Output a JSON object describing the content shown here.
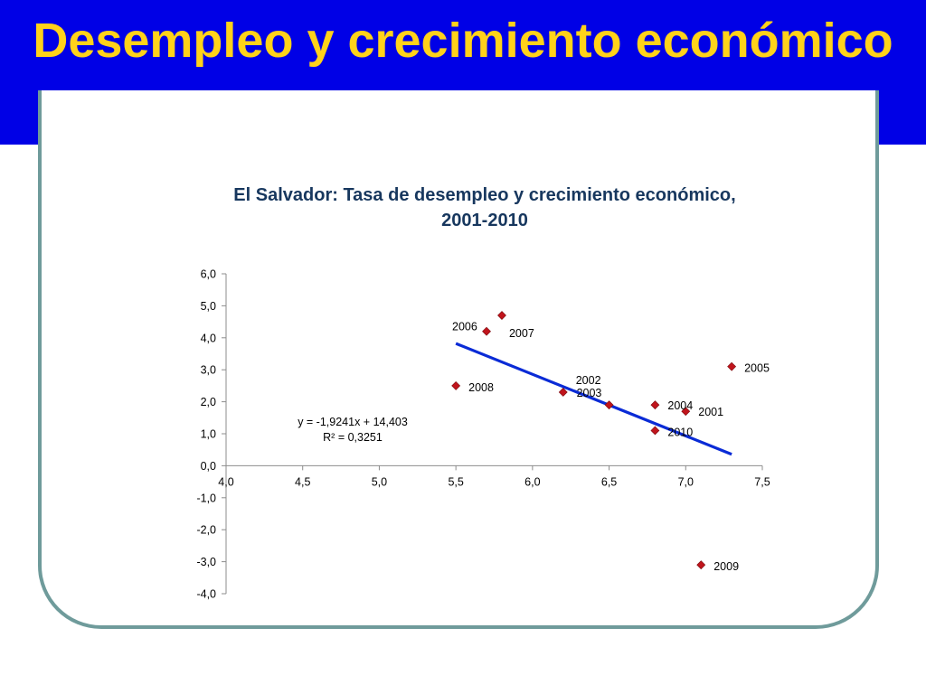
{
  "slide": {
    "title": "Desempleo y crecimiento económico"
  },
  "chart_data": {
    "type": "scatter",
    "title": "El Salvador: Tasa de desempleo y crecimiento económico, 2001-2010",
    "xlabel": "",
    "ylabel": "",
    "xlim": [
      4.0,
      7.5
    ],
    "ylim": [
      -4.0,
      6.0
    ],
    "x_ticks": [
      "4,0",
      "4,5",
      "5,0",
      "5,5",
      "6,0",
      "6,5",
      "7,0",
      "7,5"
    ],
    "y_ticks": [
      "6,0",
      "5,0",
      "4,0",
      "3,0",
      "2,0",
      "1,0",
      "0,0",
      "-1,0",
      "-2,0",
      "-3,0",
      "-4,0"
    ],
    "grid": false,
    "legend": "none",
    "marker_color": "#c0141c",
    "trendline_color": "#0a2bd6",
    "points": [
      {
        "label": "2001",
        "x": 7.0,
        "y": 1.7
      },
      {
        "label": "2002",
        "x": 6.2,
        "y": 2.3
      },
      {
        "label": "2003",
        "x": 6.5,
        "y": 1.9
      },
      {
        "label": "2004",
        "x": 6.8,
        "y": 1.9
      },
      {
        "label": "2005",
        "x": 7.3,
        "y": 3.1
      },
      {
        "label": "2006",
        "x": 5.7,
        "y": 4.2
      },
      {
        "label": "2007",
        "x": 5.8,
        "y": 4.7
      },
      {
        "label": "2008",
        "x": 5.5,
        "y": 2.5
      },
      {
        "label": "2009",
        "x": 7.1,
        "y": -3.1
      },
      {
        "label": "2010",
        "x": 6.8,
        "y": 1.1
      }
    ],
    "trendline": {
      "slope": -1.9241,
      "intercept": 14.403,
      "x_range": [
        5.5,
        7.3
      ],
      "equation": "y = -1,9241x + 14,403",
      "r2": "R² = 0,3251"
    }
  }
}
